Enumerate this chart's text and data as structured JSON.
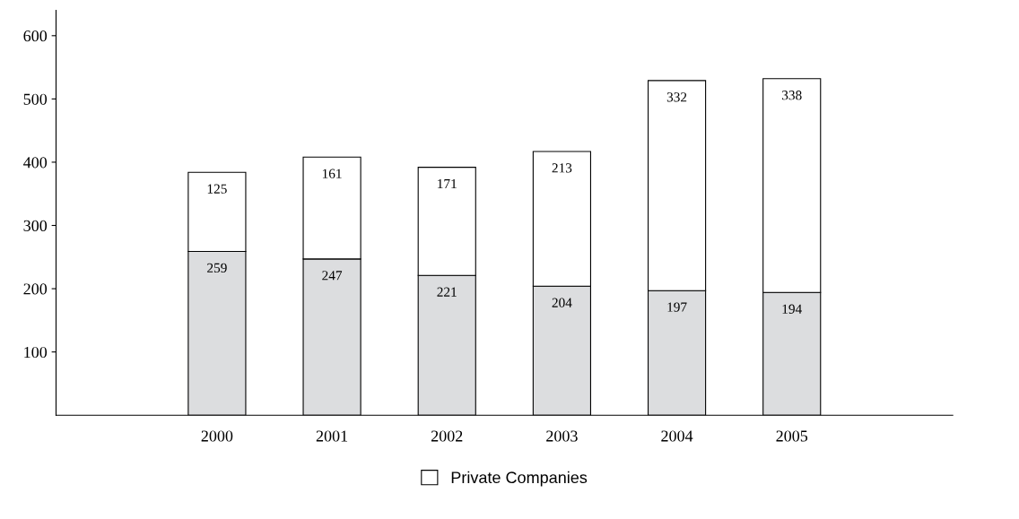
{
  "chart_data": {
    "type": "bar",
    "stacked": true,
    "categories": [
      "2000",
      "2001",
      "2002",
      "2003",
      "2004",
      "2005"
    ],
    "series": [
      {
        "color": "#dcdddf",
        "values": [
          259,
          247,
          221,
          204,
          197,
          194
        ]
      },
      {
        "name": "Private Companies",
        "color": "#ffffff",
        "values": [
          125,
          161,
          171,
          213,
          332,
          338
        ]
      }
    ],
    "ylim": [
      0,
      640
    ],
    "yticks": [
      100,
      200,
      300,
      400,
      500,
      600
    ],
    "data_labels": true,
    "grid": false,
    "legend": "bottom"
  }
}
